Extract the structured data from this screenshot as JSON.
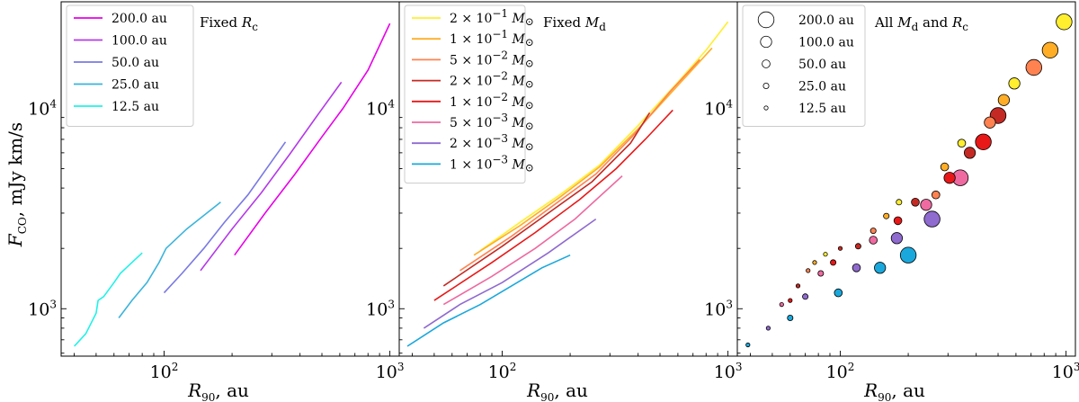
{
  "figure": {
    "ylabel": "F_CO, mJy km/s",
    "ylabel_main": "F",
    "ylabel_sub": "CO",
    "ylabel_rest": ", mJy km/s",
    "xlabel_main": "R",
    "xlabel_sub": "90",
    "xlabel_rest": ", au",
    "x_scale": "log",
    "y_scale": "log",
    "xlim": [
      35,
      1100
    ],
    "ylim": [
      580,
      34000
    ],
    "x_ticks": [
      {
        "value": 100,
        "base": "10",
        "exp": "2"
      },
      {
        "value": 1000,
        "base": "10",
        "exp": "3"
      }
    ],
    "y_ticks": [
      {
        "value": 1000,
        "base": "10",
        "exp": "3"
      },
      {
        "value": 10000,
        "base": "10",
        "exp": "4"
      }
    ]
  },
  "chart_data": [
    {
      "type": "line",
      "title": "Fixed Rc",
      "title_text": "Fixed ",
      "title_var": "R",
      "title_sub": "c",
      "legend_position": "upper-left",
      "series": [
        {
          "name": "200.0 au",
          "label": "200.0 au",
          "color": "#e800e8",
          "x": [
            205,
            280,
            380,
            500,
            620,
            800,
            1000
          ],
          "y": [
            1850,
            3000,
            4700,
            7200,
            10000,
            15500,
            26500
          ]
        },
        {
          "name": "100.0 au",
          "label": "100.0 au",
          "color": "#b43ae8",
          "x": [
            145,
            200,
            270,
            360,
            470,
            610
          ],
          "y": [
            1550,
            2500,
            3800,
            5900,
            9000,
            13500
          ]
        },
        {
          "name": "50.0 au",
          "label": "50.0 au",
          "color": "#7a79e3",
          "x": [
            100,
            120,
            150,
            185,
            235,
            345
          ],
          "y": [
            1200,
            1500,
            2000,
            2700,
            3700,
            6800
          ]
        },
        {
          "name": "25.0 au",
          "label": "25.0 au",
          "color": "#3ab4dc",
          "x": [
            63,
            72,
            84,
            95,
            102,
            126,
            178
          ],
          "y": [
            900,
            1100,
            1350,
            1700,
            2000,
            2500,
            3400
          ]
        },
        {
          "name": "12.5 au",
          "label": "12.5 au",
          "color": "#20f2e8",
          "x": [
            40,
            45,
            50,
            51,
            54,
            60,
            64,
            70,
            80
          ],
          "y": [
            650,
            750,
            950,
            1100,
            1150,
            1350,
            1500,
            1650,
            1900
          ]
        }
      ]
    },
    {
      "type": "line",
      "title": "Fixed Md",
      "title_text": "Fixed ",
      "title_var": "M",
      "title_sub": "d",
      "legend_position": "upper-left",
      "series": [
        {
          "name": "2e-1 Msun",
          "coef": "2",
          "exp": "−1",
          "color": "#ffef2e",
          "x": [
            80,
            120,
            180,
            270,
            400,
            600,
            800,
            1000
          ],
          "y": [
            1950,
            2700,
            3700,
            5200,
            8200,
            13500,
            19500,
            27000
          ]
        },
        {
          "name": "1e-1 Msun",
          "coef": "1",
          "exp": "−1",
          "color": "#ffad26",
          "x": [
            75,
            120,
            180,
            270,
            400,
            600,
            850
          ],
          "y": [
            1850,
            2600,
            3600,
            5100,
            7900,
            13000,
            20000
          ]
        },
        {
          "name": "5e-2 Msun",
          "coef": "5",
          "exp": "−2",
          "color": "#ff8250",
          "x": [
            65,
            110,
            170,
            260,
            380,
            550,
            750
          ],
          "y": [
            1550,
            2300,
            3300,
            4700,
            7300,
            12000,
            17500
          ]
        },
        {
          "name": "2e-2 Msun",
          "coef": "2",
          "exp": "−2",
          "color": "#c42a23",
          "x": [
            55,
            100,
            160,
            250,
            370,
            450
          ],
          "y": [
            1300,
            2050,
            3000,
            4300,
            6700,
            9500
          ]
        },
        {
          "name": "1e-2 Msun",
          "coef": "1",
          "exp": "−2",
          "color": "#e81818",
          "x": [
            50,
            90,
            140,
            220,
            320,
            430,
            570
          ],
          "y": [
            1100,
            1700,
            2400,
            3500,
            5000,
            7000,
            9800
          ]
        },
        {
          "name": "5e-3 Msun",
          "coef": "5",
          "exp": "−3",
          "color": "#ee6aa0",
          "x": [
            55,
            90,
            140,
            210,
            340
          ],
          "y": [
            1050,
            1450,
            2000,
            2800,
            4600
          ]
        },
        {
          "name": "2e-3 Msun",
          "coef": "2",
          "exp": "−3",
          "color": "#8f6acf",
          "x": [
            45,
            65,
            100,
            160,
            260
          ],
          "y": [
            800,
            1050,
            1350,
            1900,
            2800
          ]
        },
        {
          "name": "1e-3 Msun",
          "coef": "1",
          "exp": "−3",
          "color": "#1aa8dc",
          "x": [
            38,
            55,
            80,
            110,
            150,
            200
          ],
          "y": [
            650,
            850,
            1050,
            1300,
            1600,
            1850
          ]
        }
      ]
    },
    {
      "type": "scatter",
      "title": "All Md and Rc",
      "title_pre": "All ",
      "title_var1": "M",
      "title_sub1": "d",
      "title_mid": " and ",
      "title_var2": "R",
      "title_sub2": "c",
      "legend_position": "upper-left",
      "size_legend": [
        {
          "label": "200.0 au",
          "rc": 200
        },
        {
          "label": "100.0 au",
          "rc": 100
        },
        {
          "label": "50.0 au",
          "rc": 50
        },
        {
          "label": "25.0 au",
          "rc": 25
        },
        {
          "label": "12.5 au",
          "rc": 12.5
        }
      ],
      "points": [
        {
          "x": 980,
          "y": 27000,
          "rc": 200,
          "color": "#ffef2e"
        },
        {
          "x": 850,
          "y": 19500,
          "rc": 200,
          "color": "#ffad26"
        },
        {
          "x": 720,
          "y": 16000,
          "rc": 200,
          "color": "#ff8250"
        },
        {
          "x": 590,
          "y": 13300,
          "rc": 100,
          "color": "#ffef2e"
        },
        {
          "x": 530,
          "y": 11000,
          "rc": 100,
          "color": "#ffad26"
        },
        {
          "x": 500,
          "y": 9200,
          "rc": 200,
          "color": "#c42a23"
        },
        {
          "x": 460,
          "y": 8500,
          "rc": 100,
          "color": "#ff8250"
        },
        {
          "x": 430,
          "y": 6800,
          "rc": 200,
          "color": "#e81818"
        },
        {
          "x": 375,
          "y": 6000,
          "rc": 100,
          "color": "#c42a23"
        },
        {
          "x": 345,
          "y": 6700,
          "rc": 50,
          "color": "#ffef2e"
        },
        {
          "x": 340,
          "y": 4500,
          "rc": 200,
          "color": "#ee6aa0"
        },
        {
          "x": 305,
          "y": 4500,
          "rc": 100,
          "color": "#e81818"
        },
        {
          "x": 290,
          "y": 5100,
          "rc": 50,
          "color": "#ffad26"
        },
        {
          "x": 265,
          "y": 3700,
          "rc": 50,
          "color": "#ff8250"
        },
        {
          "x": 255,
          "y": 2800,
          "rc": 200,
          "color": "#8f6acf"
        },
        {
          "x": 240,
          "y": 3300,
          "rc": 100,
          "color": "#ee6aa0"
        },
        {
          "x": 215,
          "y": 3400,
          "rc": 50,
          "color": "#c42a23"
        },
        {
          "x": 200,
          "y": 1850,
          "rc": 200,
          "color": "#1aa8dc"
        },
        {
          "x": 182,
          "y": 3400,
          "rc": 25,
          "color": "#ffef2e"
        },
        {
          "x": 180,
          "y": 2750,
          "rc": 50,
          "color": "#e81818"
        },
        {
          "x": 178,
          "y": 2250,
          "rc": 100,
          "color": "#8f6acf"
        },
        {
          "x": 160,
          "y": 2900,
          "rc": 25,
          "color": "#ffad26"
        },
        {
          "x": 150,
          "y": 1600,
          "rc": 100,
          "color": "#1aa8dc"
        },
        {
          "x": 140,
          "y": 2450,
          "rc": 25,
          "color": "#ff8250"
        },
        {
          "x": 140,
          "y": 2200,
          "rc": 50,
          "color": "#ee6aa0"
        },
        {
          "x": 120,
          "y": 2050,
          "rc": 25,
          "color": "#c42a23"
        },
        {
          "x": 118,
          "y": 1600,
          "rc": 50,
          "color": "#8f6acf"
        },
        {
          "x": 100,
          "y": 2000,
          "rc": 12.5,
          "color": "#c42a23"
        },
        {
          "x": 98,
          "y": 1200,
          "rc": 50,
          "color": "#1aa8dc"
        },
        {
          "x": 93,
          "y": 1700,
          "rc": 25,
          "color": "#e81818"
        },
        {
          "x": 86,
          "y": 1870,
          "rc": 12.5,
          "color": "#ffef2e"
        },
        {
          "x": 82,
          "y": 1500,
          "rc": 25,
          "color": "#ee6aa0"
        },
        {
          "x": 77,
          "y": 1700,
          "rc": 12.5,
          "color": "#ffad26"
        },
        {
          "x": 72,
          "y": 1550,
          "rc": 12.5,
          "color": "#ff8250"
        },
        {
          "x": 70,
          "y": 1150,
          "rc": 25,
          "color": "#8f6acf"
        },
        {
          "x": 65,
          "y": 1300,
          "rc": 12.5,
          "color": "#c42a23"
        },
        {
          "x": 60,
          "y": 1100,
          "rc": 12.5,
          "color": "#e81818"
        },
        {
          "x": 60,
          "y": 900,
          "rc": 25,
          "color": "#1aa8dc"
        },
        {
          "x": 55,
          "y": 1050,
          "rc": 12.5,
          "color": "#ee6aa0"
        },
        {
          "x": 48,
          "y": 800,
          "rc": 12.5,
          "color": "#8f6acf"
        },
        {
          "x": 39,
          "y": 660,
          "rc": 12.5,
          "color": "#1aa8dc"
        }
      ]
    }
  ]
}
